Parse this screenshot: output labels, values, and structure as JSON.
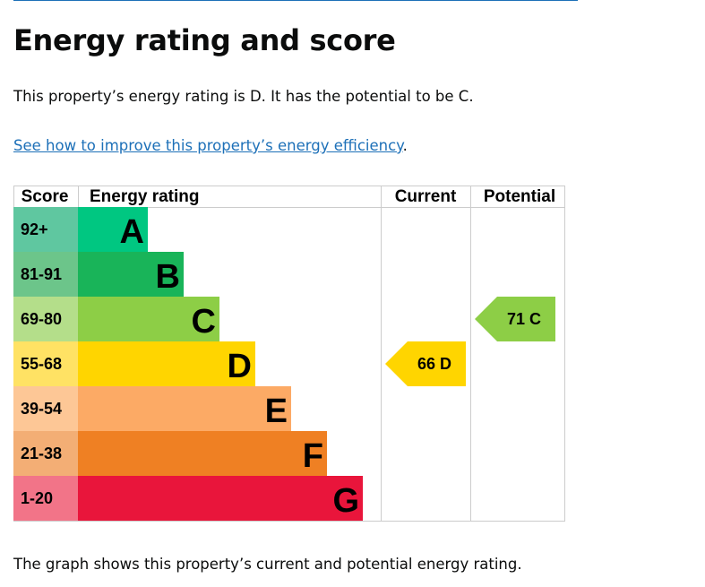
{
  "heading": "Energy rating and score",
  "summary": "This property’s energy rating is D. It has the potential to be C.",
  "improve_link": "See how to improve this property’s energy efficiency",
  "improve_link_suffix": ".",
  "caption": "The graph shows this property’s current and potential energy rating.",
  "table": {
    "headers": [
      "Score",
      "Energy rating",
      "Current",
      "Potential"
    ],
    "bands": [
      {
        "score": "92+",
        "letter": "A",
        "color": "#00c781",
        "score_color": "#5fc7a0"
      },
      {
        "score": "81-91",
        "letter": "B",
        "color": "#19b459",
        "score_color": "#6cc58a"
      },
      {
        "score": "69-80",
        "letter": "C",
        "color": "#8dce46",
        "score_color": "#b4de8a"
      },
      {
        "score": "55-68",
        "letter": "D",
        "color": "#ffd500",
        "score_color": "#ffe264"
      },
      {
        "score": "39-54",
        "letter": "E",
        "color": "#fcaa65",
        "score_color": "#fdc796"
      },
      {
        "score": "21-38",
        "letter": "F",
        "color": "#ef8023",
        "score_color": "#f3ae75"
      },
      {
        "score": "1-20",
        "letter": "G",
        "color": "#e9153b",
        "score_color": "#f27488"
      }
    ],
    "current": {
      "value": 66,
      "letter": "D",
      "label": "66  D",
      "band_index": 3
    },
    "potential": {
      "value": 71,
      "letter": "C",
      "label": "71  C",
      "band_index": 2
    }
  }
}
